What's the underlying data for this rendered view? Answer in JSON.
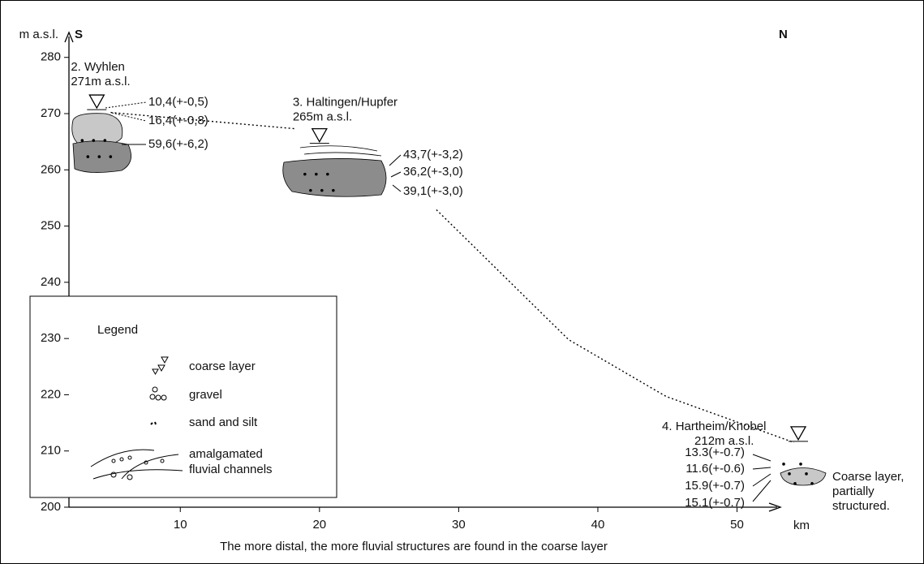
{
  "chart_data": {
    "type": "line",
    "y_label": "m a.s.l.",
    "x_label": "km",
    "caption": "The more distal, the more fluvial structures are found in the coarse layer",
    "direction_labels": [
      "S",
      "N"
    ],
    "xlim": [
      2,
      53
    ],
    "xticks": [
      10,
      20,
      30,
      40,
      50
    ],
    "ylim": [
      200,
      284
    ],
    "yticks": [
      200,
      210,
      220,
      230,
      240,
      250,
      260,
      270,
      280
    ],
    "x": [
      5,
      18.3,
      24,
      28.4,
      37.9,
      44.9,
      54.1
    ],
    "values": [
      270.2,
      267.3,
      null,
      252.9,
      229.8,
      219.7,
      211.5
    ],
    "sites": [
      {
        "name": "2. Wyhlen",
        "elevation_label": "271m a.s.l.",
        "x": 4,
        "elevation": 271,
        "ages": [
          "10,4(+-0,5)",
          "16,4(+-0,8)",
          "59,6(+-6,2)"
        ]
      },
      {
        "name": "3. Haltingen/Hupfer",
        "elevation_label": "265m a.s.l.",
        "x": 20,
        "elevation": 265,
        "ages": [
          "43,7(+-3,2)",
          "36,2(+-3,0)",
          "39,1(+-3,0)"
        ]
      },
      {
        "name": "4. Hartheim/Knobel",
        "elevation_label": "212m a.s.l.",
        "x": 54.4,
        "elevation": 212,
        "ages": [
          "13.3(+-0.7)",
          "11.6(+-0.6)",
          "15.9(+-0.7)",
          "15.1(+-0.7)"
        ],
        "note": [
          "Coarse layer,",
          "partially",
          "structured."
        ]
      }
    ],
    "legend": {
      "title": "Legend",
      "items": [
        "coarse layer",
        "gravel",
        "sand and silt",
        "amalgamated",
        "fluvial channels"
      ]
    }
  }
}
